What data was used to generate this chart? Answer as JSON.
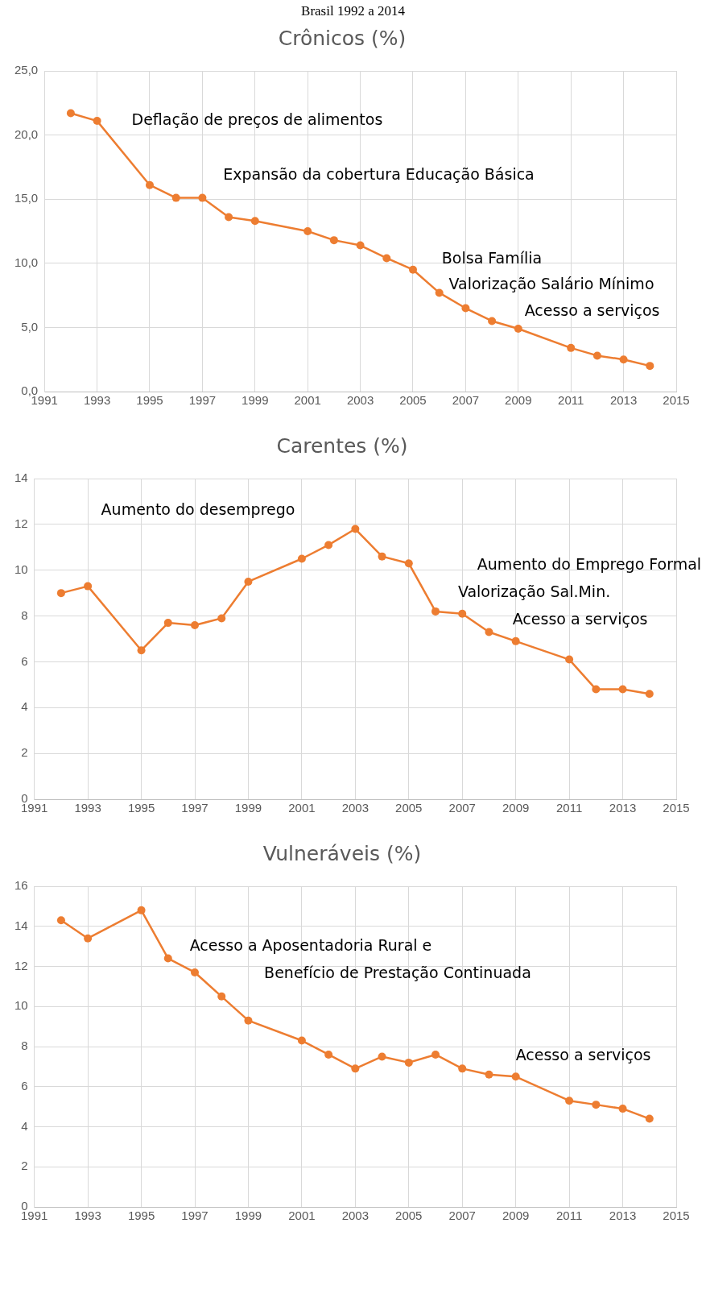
{
  "chart_data": [
    {
      "type": "line",
      "title": "Crônicos (%)",
      "subtitle": "Brasil 1992 a 2014",
      "annotations": [
        "Deflação de preços de alimentos",
        "Expansão da cobertura Educação Básica",
        "Bolsa Família",
        "Valorização Salário Mínimo",
        "Acesso a serviços"
      ],
      "x": [
        1992,
        1993,
        1995,
        1996,
        1997,
        1998,
        1999,
        2001,
        2002,
        2003,
        2004,
        2005,
        2006,
        2007,
        2008,
        2009,
        2011,
        2012,
        2013,
        2014
      ],
      "series": [
        {
          "color": "#ed7d31",
          "values": [
            21.7,
            21.1,
            16.1,
            15.1,
            15.1,
            13.6,
            13.3,
            12.5,
            11.8,
            11.4,
            10.4,
            9.5,
            7.7,
            6.5,
            5.5,
            4.9,
            3.4,
            2.8,
            2.5,
            2.0
          ]
        }
      ],
      "xlim": [
        1991,
        2015
      ],
      "xticks": [
        1991,
        1993,
        1995,
        1997,
        1999,
        2001,
        2003,
        2005,
        2007,
        2009,
        2011,
        2013,
        2015
      ],
      "ylim": [
        0,
        25
      ],
      "yticks": [
        {
          "value": 0,
          "label": "0,0"
        },
        {
          "value": 5,
          "label": "5,0"
        },
        {
          "value": 10,
          "label": "10,0"
        },
        {
          "value": 15,
          "label": "15,0"
        },
        {
          "value": 20,
          "label": "20,0"
        },
        {
          "value": 25,
          "label": "25,0"
        }
      ],
      "grid": true,
      "marker": "circle",
      "line_style": "solid"
    },
    {
      "type": "line",
      "title": "Carentes (%)",
      "annotations": [
        "Aumento do desemprego",
        "Aumento do Emprego Formal",
        "Valorização Sal.Min.",
        "Acesso a serviços"
      ],
      "x": [
        1992,
        1993,
        1995,
        1996,
        1997,
        1998,
        1999,
        2001,
        2002,
        2003,
        2004,
        2005,
        2006,
        2007,
        2008,
        2009,
        2011,
        2012,
        2013,
        2014
      ],
      "series": [
        {
          "color": "#ed7d31",
          "values": [
            9.0,
            9.3,
            6.5,
            7.7,
            7.6,
            7.9,
            9.5,
            10.5,
            11.1,
            11.8,
            10.6,
            10.3,
            8.2,
            8.1,
            7.3,
            6.9,
            6.1,
            4.8,
            4.8,
            4.6
          ]
        }
      ],
      "xlim": [
        1991,
        2015
      ],
      "xticks": [
        1991,
        1993,
        1995,
        1997,
        1999,
        2001,
        2003,
        2005,
        2007,
        2009,
        2011,
        2013,
        2015
      ],
      "ylim": [
        0,
        14
      ],
      "yticks": [
        0,
        2,
        4,
        6,
        8,
        10,
        12,
        14
      ],
      "grid": true,
      "marker": "circle",
      "line_style": "solid"
    },
    {
      "type": "line",
      "title": "Vulneráveis (%)",
      "annotations": [
        "Acesso a Aposentadoria Rural e",
        "Benefício de Prestação Continuada",
        "Acesso a serviços"
      ],
      "x": [
        1992,
        1993,
        1995,
        1996,
        1997,
        1998,
        1999,
        2001,
        2002,
        2003,
        2004,
        2005,
        2006,
        2007,
        2008,
        2009,
        2011,
        2012,
        2013,
        2014
      ],
      "series": [
        {
          "color": "#ed7d31",
          "values": [
            14.3,
            13.4,
            14.8,
            12.4,
            11.7,
            10.5,
            9.3,
            8.3,
            7.6,
            6.9,
            7.5,
            7.2,
            7.6,
            6.9,
            6.6,
            6.5,
            5.3,
            5.1,
            4.9,
            4.4
          ]
        }
      ],
      "xlim": [
        1991,
        2015
      ],
      "xticks": [
        1991,
        1993,
        1995,
        1997,
        1999,
        2001,
        2003,
        2005,
        2007,
        2009,
        2011,
        2013,
        2015
      ],
      "ylim": [
        0,
        16
      ],
      "yticks": [
        0,
        2,
        4,
        6,
        8,
        10,
        12,
        14,
        16
      ],
      "grid": true,
      "marker": "circle",
      "line_style": "solid"
    }
  ]
}
